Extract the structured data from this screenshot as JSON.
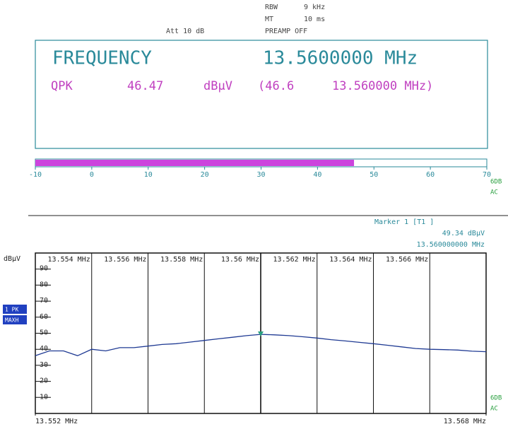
{
  "header": {
    "rows": [
      [
        "RBW",
        "9 kHz"
      ],
      [
        "MT",
        "10 ms"
      ],
      [
        "PREAMP OFF"
      ]
    ],
    "attenuation": "Att 10 dB"
  },
  "readout": {
    "title": "FREQUENCY",
    "frequency": "13.5600000 MHz",
    "detector": "QPK",
    "unit": "dBµV",
    "peak": "(46.6",
    "peak_frequency": "13.560000 MHz)"
  },
  "side_labels": [
    "6DB",
    "AC"
  ],
  "trace_labels": [
    "1 PK",
    "MAXH"
  ],
  "chart_data": [
    {
      "type": "meter",
      "values": [
        46.47
      ],
      "color": "#cc44dd",
      "xlim": [
        -10,
        70
      ],
      "xticks": [
        -10,
        0,
        10,
        20,
        30,
        40,
        50,
        60,
        70
      ]
    },
    {
      "type": "line",
      "y_label": "dBµV",
      "x": [
        13.552,
        13.5525,
        13.553,
        13.5535,
        13.554,
        13.5545,
        13.555,
        13.5555,
        13.556,
        13.5565,
        13.557,
        13.5575,
        13.558,
        13.5585,
        13.559,
        13.5595,
        13.56,
        13.5605,
        13.561,
        13.5615,
        13.562,
        13.5625,
        13.563,
        13.5635,
        13.564,
        13.5645,
        13.565,
        13.5655,
        13.566,
        13.5665,
        13.567,
        13.5675,
        13.568
      ],
      "series": [
        {
          "name": "1 PK MAXH",
          "color": "#1f3a93",
          "values": [
            36,
            39,
            39,
            36,
            40,
            39,
            41,
            41,
            42,
            43,
            43.5,
            44.5,
            45.5,
            46.5,
            47.5,
            48.5,
            49.3,
            49,
            48.5,
            47.8,
            47,
            46,
            45.2,
            44.3,
            43.5,
            42.5,
            41.5,
            40.5,
            40,
            39.8,
            39.5,
            38.8,
            38.5
          ]
        }
      ],
      "xlim": [
        13.552,
        13.568
      ],
      "xticks": [
        {
          "value": 13.552,
          "label": "13.552 MHz"
        },
        {
          "value": 13.554,
          "label": "13.554 MHz"
        },
        {
          "value": 13.556,
          "label": "13.556 MHz"
        },
        {
          "value": 13.558,
          "label": "13.558 MHz"
        },
        {
          "value": 13.56,
          "label": "13.56 MHz"
        },
        {
          "value": 13.562,
          "label": "13.562 MHz"
        },
        {
          "value": 13.564,
          "label": "13.564 MHz"
        },
        {
          "value": 13.566,
          "label": "13.566 MHz"
        },
        {
          "value": 13.568,
          "label": "13.568 MHz"
        }
      ],
      "ylim": [
        0,
        100
      ],
      "yticks": [
        10,
        20,
        30,
        40,
        50,
        60,
        70,
        80,
        90
      ],
      "marker": {
        "name": "Marker 1 [T1 ]",
        "x": 13.56,
        "y": 49.34,
        "value_label": "49.34 dBµV",
        "x_label": "13.560000000 MHz",
        "color": "#2aa080"
      }
    }
  ]
}
